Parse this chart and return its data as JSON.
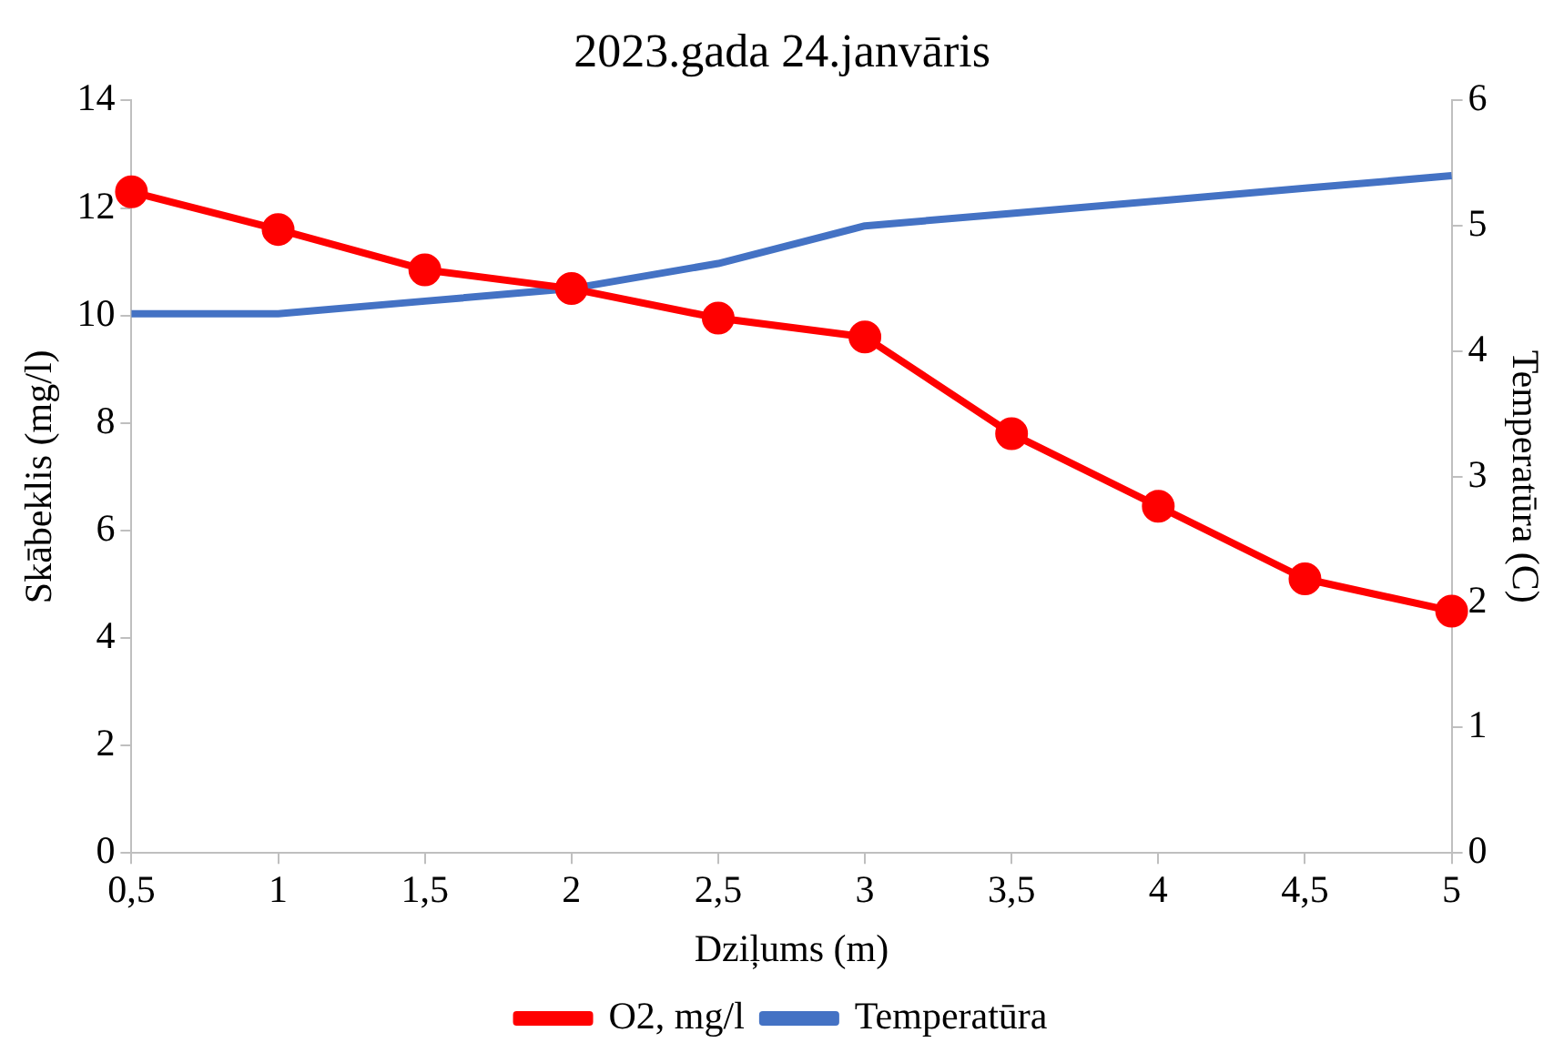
{
  "chart_data": {
    "type": "line",
    "title": "2023.gada 24.janvāris",
    "xlabel": "Dziļums (m)",
    "ylabel": "Skābeklis (mg/l)",
    "y2label": "Temperatūra (C)",
    "categories": [
      "0,5",
      "1",
      "1,5",
      "2",
      "2,5",
      "3",
      "3,5",
      "4",
      "4,5",
      "5"
    ],
    "series": [
      {
        "name": "O2, mg/l",
        "color": "#ff0000",
        "marker": "circle",
        "values": [
          12.3,
          11.6,
          10.85,
          10.5,
          9.95,
          9.6,
          7.8,
          6.45,
          5.1,
          4.5
        ]
      },
      {
        "name": "Temperatūra",
        "color": "#4472c4",
        "marker": "none",
        "axis": "y2",
        "values": [
          4.3,
          4.3,
          4.4,
          4.5,
          4.7,
          5.0,
          5.1,
          5.2,
          5.3,
          5.4
        ]
      }
    ],
    "ylim": [
      0,
      14
    ],
    "yticks": [
      0,
      2,
      4,
      6,
      8,
      10,
      12,
      14
    ],
    "y2lim": [
      0,
      6
    ],
    "y2ticks": [
      0,
      1,
      2,
      3,
      4,
      5,
      6
    ],
    "grid": false,
    "legend": "bottom",
    "line_style": "solid"
  }
}
